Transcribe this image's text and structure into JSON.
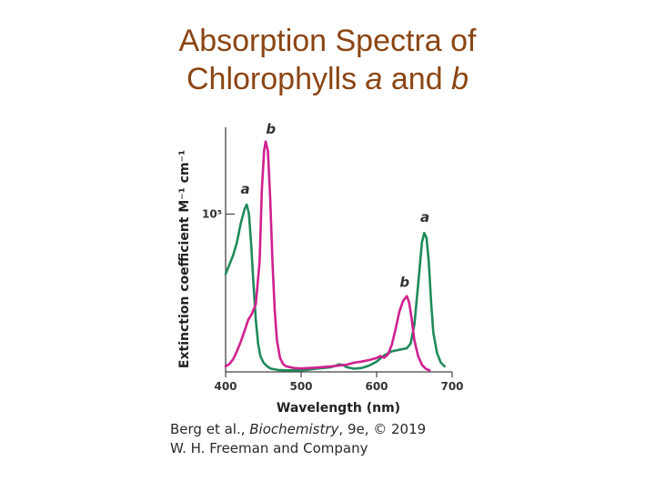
{
  "title": {
    "line1": "Absorption Spectra of",
    "line2_prefix": "Chlorophylls ",
    "line2_a": "a",
    "line2_mid": " and ",
    "line2_b": "b"
  },
  "chart_data": {
    "type": "line",
    "xlabel": "Wavelength (nm)",
    "ylabel": "Extinction coefficient M⁻¹ cm⁻¹",
    "xlim": [
      400,
      700
    ],
    "ylim": [
      0,
      155000
    ],
    "x_ticks": [
      400,
      500,
      600,
      700
    ],
    "y_tick": {
      "value": 100000,
      "label": "10⁵"
    },
    "grid": false,
    "series": [
      {
        "name": "a",
        "color": "#1f8a5b",
        "points": [
          [
            400,
            62000
          ],
          [
            405,
            68000
          ],
          [
            410,
            74000
          ],
          [
            415,
            82000
          ],
          [
            420,
            94000
          ],
          [
            425,
            103000
          ],
          [
            428,
            106000
          ],
          [
            431,
            100000
          ],
          [
            434,
            80000
          ],
          [
            437,
            55000
          ],
          [
            440,
            33000
          ],
          [
            443,
            18000
          ],
          [
            446,
            10000
          ],
          [
            450,
            6000
          ],
          [
            455,
            3500
          ],
          [
            460,
            2000
          ],
          [
            470,
            1200
          ],
          [
            480,
            1000
          ],
          [
            490,
            1000
          ],
          [
            500,
            1000
          ],
          [
            510,
            1400
          ],
          [
            520,
            2000
          ],
          [
            530,
            2500
          ],
          [
            540,
            3000
          ],
          [
            545,
            3800
          ],
          [
            550,
            4800
          ],
          [
            555,
            4500
          ],
          [
            560,
            3000
          ],
          [
            570,
            2000
          ],
          [
            580,
            2500
          ],
          [
            590,
            4000
          ],
          [
            600,
            6500
          ],
          [
            610,
            10500
          ],
          [
            620,
            13000
          ],
          [
            630,
            14000
          ],
          [
            640,
            15000
          ],
          [
            645,
            18000
          ],
          [
            650,
            30000
          ],
          [
            655,
            55000
          ],
          [
            660,
            82000
          ],
          [
            663,
            88000
          ],
          [
            666,
            85000
          ],
          [
            669,
            70000
          ],
          [
            672,
            45000
          ],
          [
            675,
            25000
          ],
          [
            680,
            12000
          ],
          [
            685,
            6000
          ],
          [
            690,
            3500
          ]
        ]
      },
      {
        "name": "b",
        "color": "#d0208f",
        "points": [
          [
            400,
            3500
          ],
          [
            405,
            5000
          ],
          [
            410,
            8000
          ],
          [
            415,
            13000
          ],
          [
            420,
            19000
          ],
          [
            425,
            26000
          ],
          [
            430,
            33000
          ],
          [
            435,
            37000
          ],
          [
            440,
            43000
          ],
          [
            445,
            70000
          ],
          [
            448,
            115000
          ],
          [
            451,
            140000
          ],
          [
            453,
            146000
          ],
          [
            456,
            140000
          ],
          [
            459,
            110000
          ],
          [
            462,
            70000
          ],
          [
            465,
            40000
          ],
          [
            468,
            20000
          ],
          [
            472,
            9000
          ],
          [
            476,
            5000
          ],
          [
            480,
            3500
          ],
          [
            490,
            2500
          ],
          [
            500,
            2200
          ],
          [
            520,
            2700
          ],
          [
            540,
            3500
          ],
          [
            560,
            4500
          ],
          [
            570,
            5800
          ],
          [
            580,
            6500
          ],
          [
            590,
            7500
          ],
          [
            600,
            8800
          ],
          [
            605,
            10000
          ],
          [
            610,
            9000
          ],
          [
            615,
            11000
          ],
          [
            620,
            17000
          ],
          [
            625,
            27000
          ],
          [
            630,
            38000
          ],
          [
            635,
            45000
          ],
          [
            640,
            48000
          ],
          [
            643,
            44000
          ],
          [
            646,
            35000
          ],
          [
            650,
            20000
          ],
          [
            655,
            10000
          ],
          [
            660,
            4500
          ],
          [
            665,
            2000
          ],
          [
            670,
            1000
          ]
        ]
      }
    ],
    "annotations": [
      {
        "text": "a",
        "series": "a",
        "x": 426,
        "y": 113000
      },
      {
        "text": "b",
        "series": "b",
        "x": 460,
        "y": 151000
      },
      {
        "text": "a",
        "series": "a",
        "x": 664,
        "y": 95000
      },
      {
        "text": "b",
        "series": "b",
        "x": 637,
        "y": 54000
      }
    ]
  },
  "credit": {
    "line1_prefix": "Berg et al., ",
    "line1_italic": "Biochemistry",
    "line1_suffix": ", 9e, © 2019",
    "line2": "W. H. Freeman and Company"
  }
}
